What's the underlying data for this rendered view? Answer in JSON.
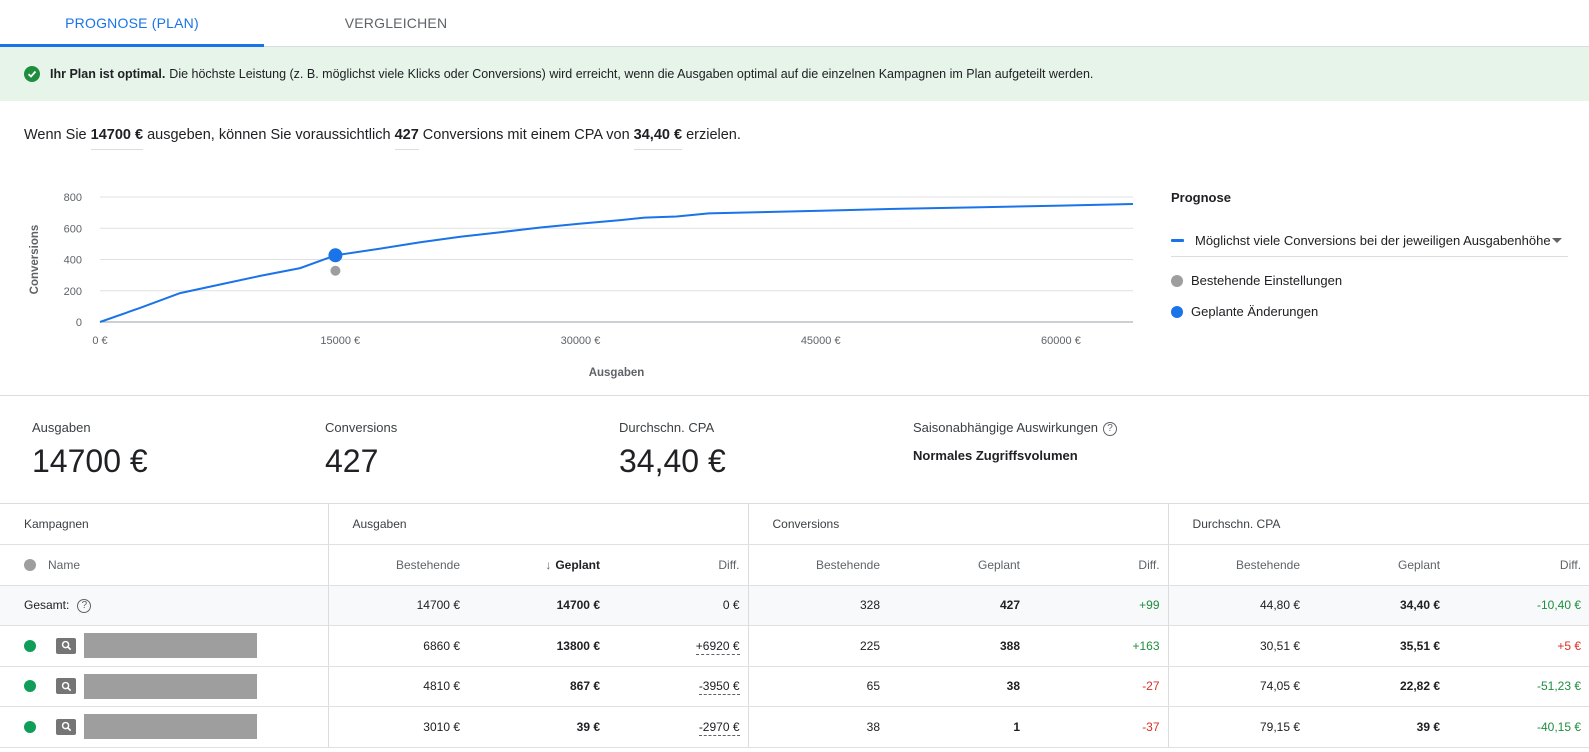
{
  "tabs": [
    {
      "label": "PROGNOSE (PLAN)"
    },
    {
      "label": "VERGLEICHEN"
    }
  ],
  "banner": {
    "bold": "Ihr Plan ist optimal.",
    "text": "Die höchste Leistung (z. B. möglichst viele Klicks oder Conversions) wird erreicht, wenn die Ausgaben optimal auf die einzelnen Kampagnen im Plan aufgeteilt werden."
  },
  "summary": {
    "part1": "Wenn Sie ",
    "spend": "14700 €",
    "part2": " ausgeben, können Sie voraussichtlich ",
    "conversions": "427",
    "part3": " Conversions mit einem CPA von ",
    "cpa": "34,40 €",
    "part4": " erzielen."
  },
  "chart_data": {
    "type": "line",
    "xlabel": "Ausgaben",
    "ylabel": "Conversions",
    "xlim": [
      0,
      64500
    ],
    "ylim": [
      0,
      800
    ],
    "xticks": [
      0,
      15000,
      30000,
      45000,
      60000
    ],
    "xtick_labels": [
      "0 €",
      "15000 €",
      "30000 €",
      "45000 €",
      "60000 €"
    ],
    "yticks": [
      0,
      200,
      400,
      600,
      800
    ],
    "grid": true,
    "series": [
      {
        "name": "Möglichst viele Conversions bei der jeweiligen Ausgabenhöhe",
        "color": "#1a73e8",
        "x": [
          0,
          2500,
          5000,
          7500,
          10000,
          12500,
          14700,
          17500,
          20000,
          22500,
          25000,
          27500,
          30000,
          32500,
          34000,
          36000,
          38000,
          40000,
          45000,
          50000,
          55000,
          60000,
          64500
        ],
        "y": [
          0,
          90,
          185,
          240,
          295,
          345,
          427,
          470,
          510,
          545,
          575,
          605,
          630,
          652,
          668,
          675,
          695,
          700,
          712,
          725,
          735,
          745,
          755
        ]
      }
    ],
    "points": [
      {
        "name": "Bestehende Einstellungen",
        "x": 14700,
        "y": 328,
        "color": "#9e9e9e"
      },
      {
        "name": "Geplante Änderungen",
        "x": 14700,
        "y": 427,
        "color": "#1a73e8"
      }
    ]
  },
  "legend": {
    "title": "Prognose",
    "select": "Möglichst viele Conversions bei der jeweiligen Ausgabenhöhe",
    "existing": "Bestehende Einstellungen",
    "planned": "Geplante Änderungen"
  },
  "metrics": {
    "spend_label": "Ausgaben",
    "spend": "14700 €",
    "conv_label": "Conversions",
    "conv": "427",
    "cpa_label": "Durchschn. CPA",
    "cpa": "34,40 €",
    "season_label": "Saisonabhängige Auswirkungen",
    "season": "Normales Zugriffsvolumen"
  },
  "table": {
    "groups": [
      "Kampagnen",
      "Ausgaben",
      "Conversions",
      "Durchschn. CPA"
    ],
    "headers": {
      "name": "Name",
      "existing": "Bestehende",
      "planned": "Geplant",
      "diff": "Diff."
    },
    "total": {
      "label": "Gesamt:",
      "spend": [
        "14700 €",
        "14700 €",
        "0 €"
      ],
      "conv": [
        "328",
        "427",
        "+99"
      ],
      "cpa": [
        "44,80 €",
        "34,40 €",
        "-10,40 €"
      ]
    },
    "rows": [
      {
        "spend": [
          "6860 €",
          "13800 €",
          "+6920 €"
        ],
        "conv": [
          "225",
          "388",
          "+163"
        ],
        "cpa": [
          "30,51 €",
          "35,51 €",
          "+5 €"
        ]
      },
      {
        "spend": [
          "4810 €",
          "867 €",
          "-3950 €"
        ],
        "conv": [
          "65",
          "38",
          "-27"
        ],
        "cpa": [
          "74,05 €",
          "22,82 €",
          "-51,23 €"
        ]
      },
      {
        "spend": [
          "3010 €",
          "39 €",
          "-2970 €"
        ],
        "conv": [
          "38",
          "1",
          "-37"
        ],
        "cpa": [
          "79,15 €",
          "39 €",
          "-40,15 €"
        ]
      }
    ]
  }
}
